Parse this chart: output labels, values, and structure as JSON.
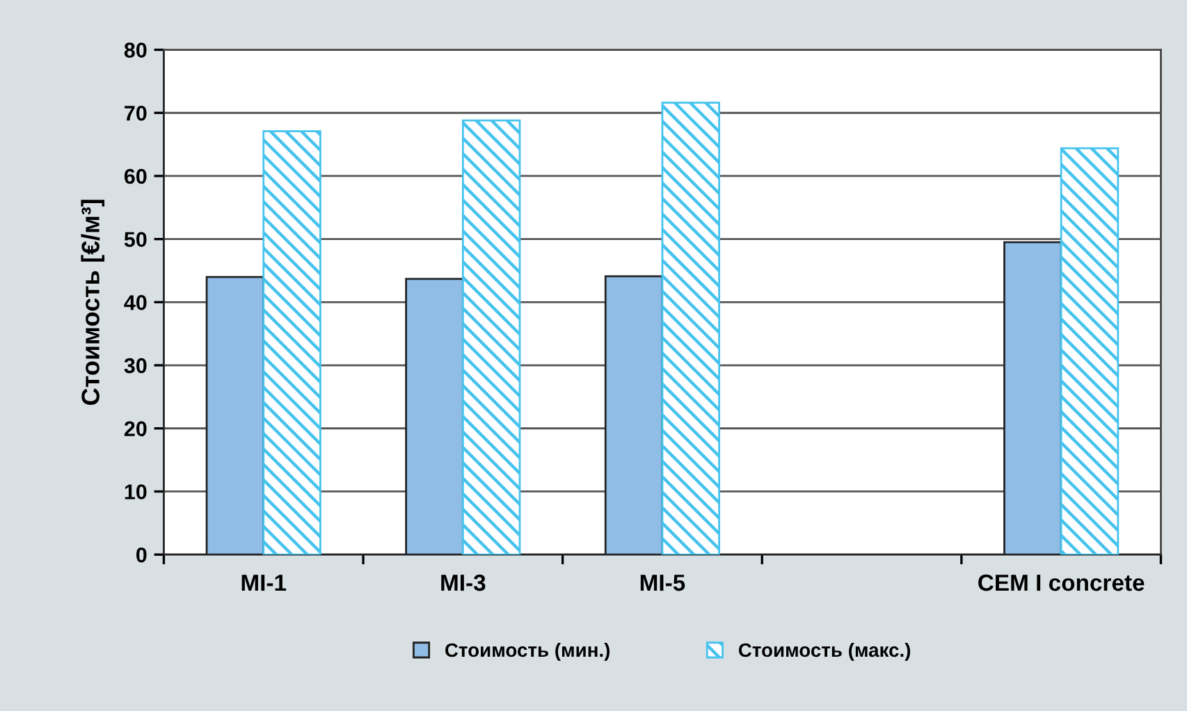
{
  "chart_data": {
    "type": "bar",
    "ylabel": "Стоимость [€/м³]",
    "categories": [
      "MI-1",
      "MI-3",
      "MI-5",
      null,
      "CEM I concrete"
    ],
    "series": [
      {
        "name": "Стоимость (мин.)",
        "color": "#8fbde6",
        "values": [
          44.0,
          43.7,
          44.1,
          null,
          49.5
        ]
      },
      {
        "name": "Стоимость (макс.)",
        "color": "#45c3ee",
        "values": [
          67.1,
          68.8,
          71.6,
          null,
          64.4
        ]
      }
    ],
    "ylim": [
      0,
      80
    ],
    "yticks": [
      0,
      10,
      20,
      30,
      40,
      50,
      60,
      70,
      80
    ],
    "grid": "y",
    "legend": "bottom"
  }
}
